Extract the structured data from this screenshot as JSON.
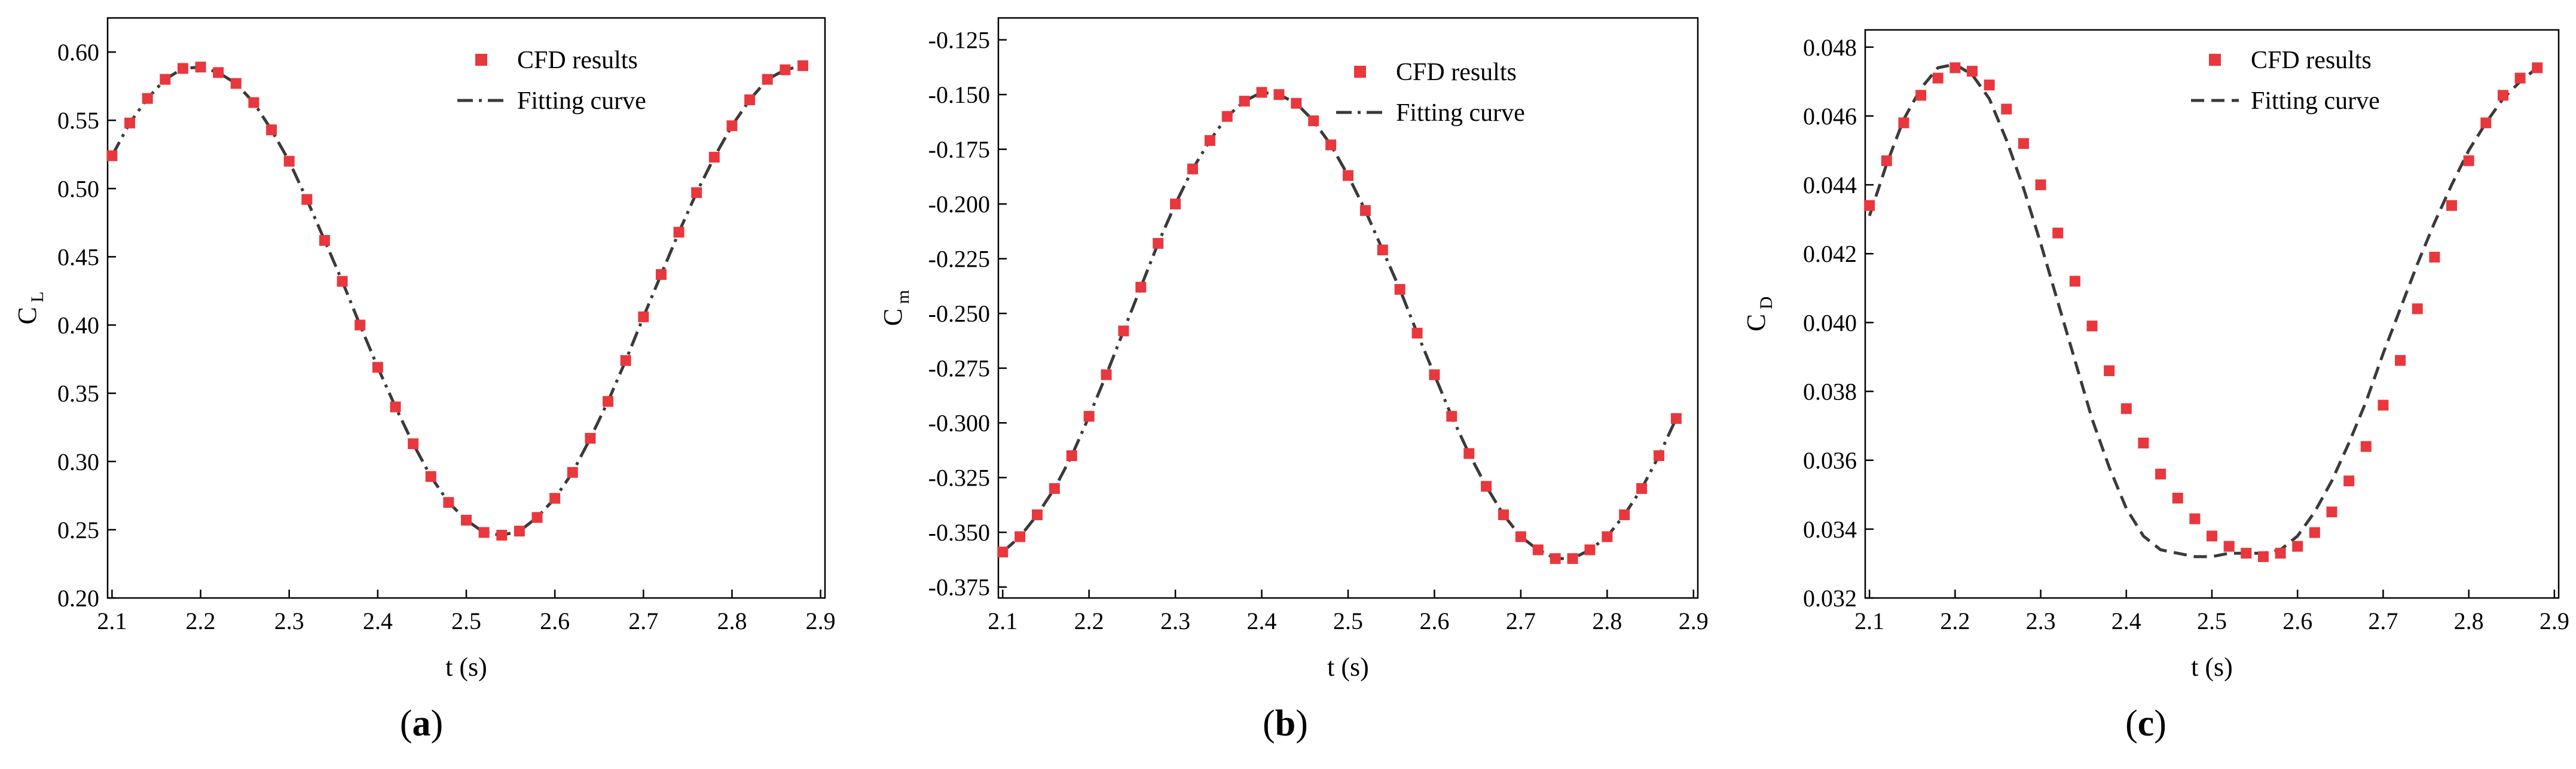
{
  "colors": {
    "marker": "#e8383d",
    "curve": "#3a3a3a",
    "axis": "#000000"
  },
  "panels": [
    {
      "caption_letter": "a",
      "chart_data": {
        "type": "scatter",
        "xlabel": "t (s)",
        "ylabel": "C",
        "ylabel_sub": "L",
        "xlim": [
          2.095,
          2.905
        ],
        "ylim": [
          0.2,
          0.625
        ],
        "xticks": [
          2.1,
          2.2,
          2.3,
          2.4,
          2.5,
          2.6,
          2.7,
          2.8,
          2.9
        ],
        "yticks": [
          0.2,
          0.25,
          0.3,
          0.35,
          0.4,
          0.45,
          0.5,
          0.55,
          0.6
        ],
        "ytick_decimals": 2,
        "legend_placement": "top-right",
        "series": [
          {
            "name": "CFD results",
            "style": "markers",
            "x": [
              2.1,
              2.12,
              2.14,
              2.16,
              2.18,
              2.2,
              2.22,
              2.24,
              2.26,
              2.28,
              2.3,
              2.32,
              2.34,
              2.36,
              2.38,
              2.4,
              2.42,
              2.44,
              2.46,
              2.48,
              2.5,
              2.52,
              2.54,
              2.56,
              2.58,
              2.6,
              2.62,
              2.64,
              2.66,
              2.68,
              2.7,
              2.72,
              2.74,
              2.76,
              2.78,
              2.8,
              2.82,
              2.84,
              2.86,
              2.88
            ],
            "y": [
              0.524,
              0.548,
              0.566,
              0.58,
              0.588,
              0.589,
              0.585,
              0.577,
              0.563,
              0.543,
              0.52,
              0.492,
              0.462,
              0.432,
              0.4,
              0.369,
              0.34,
              0.313,
              0.289,
              0.27,
              0.257,
              0.248,
              0.246,
              0.249,
              0.259,
              0.273,
              0.292,
              0.317,
              0.344,
              0.374,
              0.406,
              0.437,
              0.468,
              0.497,
              0.523,
              0.546,
              0.565,
              0.58,
              0.587,
              0.59
            ]
          },
          {
            "name": "Fitting curve",
            "style": "dashdot",
            "x": [
              2.1,
              2.12,
              2.14,
              2.16,
              2.18,
              2.2,
              2.22,
              2.24,
              2.26,
              2.28,
              2.3,
              2.32,
              2.34,
              2.36,
              2.38,
              2.4,
              2.42,
              2.44,
              2.46,
              2.48,
              2.5,
              2.52,
              2.54,
              2.56,
              2.58,
              2.6,
              2.62,
              2.64,
              2.66,
              2.68,
              2.7,
              2.72,
              2.74,
              2.76,
              2.78,
              2.8,
              2.82,
              2.84,
              2.86,
              2.88
            ],
            "y": [
              0.524,
              0.548,
              0.566,
              0.58,
              0.588,
              0.589,
              0.585,
              0.577,
              0.563,
              0.543,
              0.52,
              0.492,
              0.462,
              0.432,
              0.4,
              0.369,
              0.34,
              0.313,
              0.289,
              0.27,
              0.257,
              0.248,
              0.246,
              0.249,
              0.259,
              0.273,
              0.292,
              0.317,
              0.344,
              0.374,
              0.406,
              0.437,
              0.468,
              0.497,
              0.523,
              0.546,
              0.565,
              0.58,
              0.587,
              0.59
            ]
          }
        ]
      }
    },
    {
      "caption_letter": "b",
      "chart_data": {
        "type": "scatter",
        "xlabel": "t (s)",
        "ylabel": "C",
        "ylabel_sub": "m",
        "xlim": [
          2.095,
          2.905
        ],
        "ylim": [
          -0.38,
          -0.115
        ],
        "xticks": [
          2.1,
          2.2,
          2.3,
          2.4,
          2.5,
          2.6,
          2.7,
          2.8,
          2.9
        ],
        "yticks": [
          -0.375,
          -0.35,
          -0.325,
          -0.3,
          -0.275,
          -0.25,
          -0.225,
          -0.2,
          -0.175,
          -0.15,
          -0.125
        ],
        "ytick_decimals": 3,
        "legend_placement": "top-right",
        "series": [
          {
            "name": "CFD results",
            "style": "markers",
            "x": [
              2.1,
              2.12,
              2.14,
              2.16,
              2.18,
              2.2,
              2.22,
              2.24,
              2.26,
              2.28,
              2.3,
              2.32,
              2.34,
              2.36,
              2.38,
              2.4,
              2.42,
              2.44,
              2.46,
              2.48,
              2.5,
              2.52,
              2.54,
              2.56,
              2.58,
              2.6,
              2.62,
              2.64,
              2.66,
              2.68,
              2.7,
              2.72,
              2.74,
              2.76,
              2.78,
              2.8,
              2.82,
              2.84,
              2.86,
              2.88
            ],
            "y": [
              -0.359,
              -0.352,
              -0.342,
              -0.33,
              -0.315,
              -0.297,
              -0.278,
              -0.258,
              -0.238,
              -0.218,
              -0.2,
              -0.184,
              -0.171,
              -0.16,
              -0.153,
              -0.149,
              -0.15,
              -0.154,
              -0.162,
              -0.173,
              -0.187,
              -0.203,
              -0.221,
              -0.239,
              -0.259,
              -0.278,
              -0.297,
              -0.314,
              -0.329,
              -0.342,
              -0.352,
              -0.358,
              -0.362,
              -0.362,
              -0.358,
              -0.352,
              -0.342,
              -0.33,
              -0.315,
              -0.298
            ]
          },
          {
            "name": "Fitting curve",
            "style": "dashdot",
            "x": [
              2.1,
              2.12,
              2.14,
              2.16,
              2.18,
              2.2,
              2.22,
              2.24,
              2.26,
              2.28,
              2.3,
              2.32,
              2.34,
              2.36,
              2.38,
              2.4,
              2.42,
              2.44,
              2.46,
              2.48,
              2.5,
              2.52,
              2.54,
              2.56,
              2.58,
              2.6,
              2.62,
              2.64,
              2.66,
              2.68,
              2.7,
              2.72,
              2.74,
              2.76,
              2.78,
              2.8,
              2.82,
              2.84,
              2.86,
              2.88
            ],
            "y": [
              -0.359,
              -0.352,
              -0.342,
              -0.33,
              -0.315,
              -0.297,
              -0.278,
              -0.258,
              -0.238,
              -0.218,
              -0.2,
              -0.184,
              -0.171,
              -0.16,
              -0.153,
              -0.149,
              -0.15,
              -0.154,
              -0.162,
              -0.173,
              -0.187,
              -0.203,
              -0.221,
              -0.239,
              -0.259,
              -0.278,
              -0.297,
              -0.314,
              -0.329,
              -0.342,
              -0.352,
              -0.358,
              -0.362,
              -0.362,
              -0.358,
              -0.352,
              -0.342,
              -0.33,
              -0.315,
              -0.298
            ]
          }
        ]
      }
    },
    {
      "caption_letter": "c",
      "chart_data": {
        "type": "scatter",
        "xlabel": "t (s)",
        "ylabel": "C",
        "ylabel_sub": "D",
        "xlim": [
          2.095,
          2.905
        ],
        "ylim": [
          0.032,
          0.0485
        ],
        "xticks": [
          2.1,
          2.2,
          2.3,
          2.4,
          2.5,
          2.6,
          2.7,
          2.8,
          2.9
        ],
        "yticks": [
          0.032,
          0.034,
          0.036,
          0.038,
          0.04,
          0.042,
          0.044,
          0.046,
          0.048
        ],
        "ytick_decimals": 3,
        "legend_placement": "top-right",
        "series": [
          {
            "name": "CFD results",
            "style": "markers",
            "x": [
              2.1,
              2.12,
              2.14,
              2.16,
              2.18,
              2.2,
              2.22,
              2.24,
              2.26,
              2.28,
              2.3,
              2.32,
              2.34,
              2.36,
              2.38,
              2.4,
              2.42,
              2.44,
              2.46,
              2.48,
              2.5,
              2.52,
              2.54,
              2.56,
              2.58,
              2.6,
              2.62,
              2.64,
              2.66,
              2.68,
              2.7,
              2.72,
              2.74,
              2.76,
              2.78,
              2.8,
              2.82,
              2.84,
              2.86,
              2.88
            ],
            "y": [
              0.0434,
              0.0447,
              0.0458,
              0.0466,
              0.0471,
              0.0474,
              0.0473,
              0.0469,
              0.0462,
              0.0452,
              0.044,
              0.0426,
              0.0412,
              0.0399,
              0.0386,
              0.0375,
              0.0365,
              0.0356,
              0.0349,
              0.0343,
              0.0338,
              0.0335,
              0.0333,
              0.0332,
              0.0333,
              0.0335,
              0.0339,
              0.0345,
              0.0354,
              0.0364,
              0.0376,
              0.0389,
              0.0404,
              0.0419,
              0.0434,
              0.0447,
              0.0458,
              0.0466,
              0.0471,
              0.0474
            ]
          },
          {
            "name": "Fitting curve",
            "style": "dashed",
            "x": [
              2.1,
              2.12,
              2.14,
              2.16,
              2.18,
              2.2,
              2.22,
              2.24,
              2.26,
              2.28,
              2.3,
              2.32,
              2.34,
              2.36,
              2.38,
              2.4,
              2.42,
              2.44,
              2.46,
              2.48,
              2.5,
              2.52,
              2.54,
              2.56,
              2.58,
              2.6,
              2.62,
              2.64,
              2.66,
              2.68,
              2.7,
              2.72,
              2.74,
              2.76,
              2.78,
              2.8,
              2.82,
              2.84,
              2.86,
              2.88
            ],
            "y": [
              0.0431,
              0.0446,
              0.0459,
              0.0468,
              0.0474,
              0.0475,
              0.0472,
              0.0465,
              0.0453,
              0.0439,
              0.0423,
              0.0406,
              0.0389,
              0.0372,
              0.0358,
              0.0346,
              0.0338,
              0.0334,
              0.0333,
              0.0332,
              0.0332,
              0.0333,
              0.0333,
              0.0333,
              0.0334,
              0.0338,
              0.0345,
              0.0354,
              0.0365,
              0.0377,
              0.0391,
              0.0404,
              0.0417,
              0.0429,
              0.044,
              0.045,
              0.0458,
              0.0465,
              0.047,
              0.0474
            ]
          }
        ]
      }
    }
  ]
}
